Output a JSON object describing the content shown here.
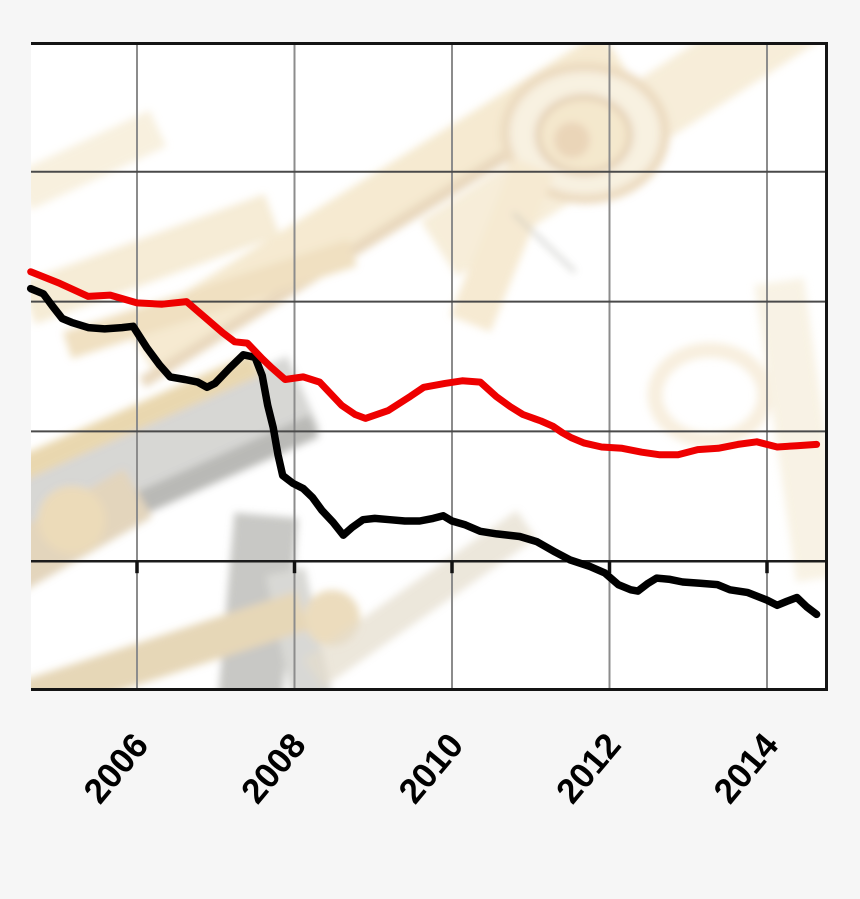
{
  "figure": {
    "background_color": "#f6f6f6",
    "plot_background_color": "#ffffff",
    "background_image_subject": "faded antique brass telescope on tripod (decorative washed-out photo behind plot)",
    "frame_color": "#141414",
    "vertical_gridline_color": "#8c8c8c",
    "horizontal_gridline_color": "#4a4a4a",
    "x_axis_line_color": "#1c1c1c",
    "tick_mark_color": "#111111",
    "tick_label_color": "#000000"
  },
  "chart_data": {
    "type": "line",
    "title": "",
    "xlabel": "",
    "ylabel": "",
    "legend": "none",
    "grid": true,
    "x_tick_labels": [
      "2006",
      "2008",
      "2010",
      "2012",
      "2014"
    ],
    "x_tick_years": [
      2006,
      2008,
      2010,
      2012,
      2014
    ],
    "x_range_years": [
      2004.65,
      2014.74
    ],
    "y_axis_note": "y-axis value labels are cropped out of the image; y values are in gridline units (0 = bottom frame, 5 = top frame)",
    "y_range_units": [
      0,
      5
    ],
    "horizontal_gridline_units": [
      1,
      2,
      3,
      4
    ],
    "series": [
      {
        "name": "red-line",
        "color": "#ee0000",
        "stroke_width": 7,
        "points": [
          [
            2004.65,
            3.23
          ],
          [
            2005.02,
            3.14
          ],
          [
            2005.38,
            3.04
          ],
          [
            2005.66,
            3.05
          ],
          [
            2006,
            2.99
          ],
          [
            2006.32,
            2.98
          ],
          [
            2006.63,
            3.0
          ],
          [
            2006.86,
            2.88
          ],
          [
            2007.09,
            2.76
          ],
          [
            2007.24,
            2.69
          ],
          [
            2007.4,
            2.68
          ],
          [
            2007.59,
            2.56
          ],
          [
            2007.71,
            2.49
          ],
          [
            2007.88,
            2.4
          ],
          [
            2008.11,
            2.42
          ],
          [
            2008.32,
            2.38
          ],
          [
            2008.6,
            2.2
          ],
          [
            2008.77,
            2.13
          ],
          [
            2008.9,
            2.1
          ],
          [
            2009.19,
            2.16
          ],
          [
            2009.47,
            2.27
          ],
          [
            2009.64,
            2.34
          ],
          [
            2009.91,
            2.37
          ],
          [
            2010.13,
            2.39
          ],
          [
            2010.36,
            2.38
          ],
          [
            2010.56,
            2.27
          ],
          [
            2010.74,
            2.19
          ],
          [
            2010.9,
            2.13
          ],
          [
            2011.13,
            2.08
          ],
          [
            2011.28,
            2.04
          ],
          [
            2011.4,
            1.99
          ],
          [
            2011.52,
            1.95
          ],
          [
            2011.68,
            1.91
          ],
          [
            2011.9,
            1.88
          ],
          [
            2012.16,
            1.87
          ],
          [
            2012.41,
            1.84
          ],
          [
            2012.64,
            1.82
          ],
          [
            2012.87,
            1.82
          ],
          [
            2013.12,
            1.86
          ],
          [
            2013.38,
            1.87
          ],
          [
            2013.63,
            1.9
          ],
          [
            2013.87,
            1.92
          ],
          [
            2014.13,
            1.88
          ],
          [
            2014.38,
            1.89
          ],
          [
            2014.63,
            1.9
          ]
        ]
      },
      {
        "name": "black-line",
        "color": "#000000",
        "stroke_width": 7.5,
        "points": [
          [
            2004.65,
            3.1
          ],
          [
            2004.81,
            3.06
          ],
          [
            2004.92,
            2.97
          ],
          [
            2005.05,
            2.87
          ],
          [
            2005.17,
            2.84
          ],
          [
            2005.38,
            2.8
          ],
          [
            2005.59,
            2.79
          ],
          [
            2005.81,
            2.8
          ],
          [
            2005.95,
            2.81
          ],
          [
            2006.13,
            2.64
          ],
          [
            2006.29,
            2.51
          ],
          [
            2006.42,
            2.42
          ],
          [
            2006.61,
            2.4
          ],
          [
            2006.77,
            2.38
          ],
          [
            2006.89,
            2.34
          ],
          [
            2006.99,
            2.37
          ],
          [
            2007.18,
            2.49
          ],
          [
            2007.35,
            2.59
          ],
          [
            2007.5,
            2.57
          ],
          [
            2007.59,
            2.43
          ],
          [
            2007.66,
            2.2
          ],
          [
            2007.73,
            2.03
          ],
          [
            2007.79,
            1.82
          ],
          [
            2007.85,
            1.66
          ],
          [
            2007.98,
            1.6
          ],
          [
            2008.11,
            1.56
          ],
          [
            2008.23,
            1.49
          ],
          [
            2008.35,
            1.39
          ],
          [
            2008.49,
            1.3
          ],
          [
            2008.62,
            1.2
          ],
          [
            2008.73,
            1.26
          ],
          [
            2008.87,
            1.32
          ],
          [
            2009.02,
            1.33
          ],
          [
            2009.21,
            1.32
          ],
          [
            2009.4,
            1.31
          ],
          [
            2009.59,
            1.31
          ],
          [
            2009.76,
            1.33
          ],
          [
            2009.89,
            1.35
          ],
          [
            2010.0,
            1.31
          ],
          [
            2010.17,
            1.28
          ],
          [
            2010.36,
            1.23
          ],
          [
            2010.57,
            1.21
          ],
          [
            2010.86,
            1.19
          ],
          [
            2011.08,
            1.15
          ],
          [
            2011.31,
            1.07
          ],
          [
            2011.5,
            1.01
          ],
          [
            2011.75,
            0.96
          ],
          [
            2011.94,
            0.91
          ],
          [
            2012.11,
            0.82
          ],
          [
            2012.27,
            0.78
          ],
          [
            2012.36,
            0.77
          ],
          [
            2012.49,
            0.83
          ],
          [
            2012.6,
            0.87
          ],
          [
            2012.77,
            0.86
          ],
          [
            2012.93,
            0.84
          ],
          [
            2013.15,
            0.83
          ],
          [
            2013.37,
            0.82
          ],
          [
            2013.53,
            0.78
          ],
          [
            2013.75,
            0.76
          ],
          [
            2014.0,
            0.7
          ],
          [
            2014.13,
            0.66
          ],
          [
            2014.25,
            0.69
          ],
          [
            2014.38,
            0.72
          ],
          [
            2014.5,
            0.65
          ],
          [
            2014.63,
            0.59
          ]
        ]
      }
    ]
  }
}
